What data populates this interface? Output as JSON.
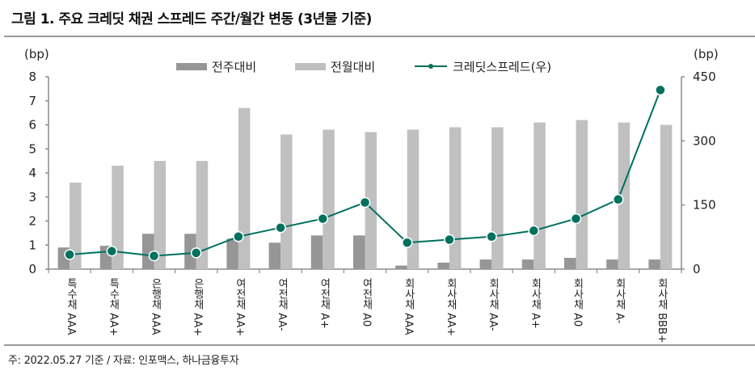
{
  "title": "그림 1. 주요 크레딧 채권 스프레드 주간/월간 변동 (3년물 기준)",
  "footnote": "주: 2022.05.27 기준 / 자료: 인포맥스, 하나금융투자",
  "chart_data": {
    "type": "bar+line",
    "categories": [
      "특수채 AAA",
      "특수채 AA+",
      "은행채 AAA",
      "은행채 AA+",
      "여전채 AA+",
      "여전채 AA-",
      "여전채 A+",
      "여전채 A0",
      "회사채 AAA",
      "회사채 AA+",
      "회사채 AA-",
      "회사채 A+",
      "회사채 A0",
      "회사채 A-",
      "회사채 BBB+"
    ],
    "y_left": {
      "unit": "(bp)",
      "ylim": [
        0,
        8
      ],
      "ticks": [
        "0",
        "1",
        "2",
        "3",
        "4",
        "5",
        "6",
        "7",
        "8"
      ]
    },
    "y_right": {
      "unit": "(bp)",
      "ylim": [
        0,
        450
      ],
      "ticks": [
        "0",
        "150",
        "300",
        "450"
      ]
    },
    "legend_position": "top",
    "grid": false,
    "series": [
      {
        "name": "전주대비",
        "type": "bar",
        "axis": "left",
        "color": "#969696",
        "values": [
          0.9,
          0.97,
          1.47,
          1.47,
          1.27,
          1.1,
          1.4,
          1.4,
          0.15,
          0.27,
          0.4,
          0.4,
          0.47,
          0.4,
          0.4
        ]
      },
      {
        "name": "전월대비",
        "type": "bar",
        "axis": "left",
        "color": "#c0c0c0",
        "values": [
          3.6,
          4.3,
          4.5,
          4.5,
          6.7,
          5.6,
          5.8,
          5.7,
          5.8,
          5.9,
          5.9,
          6.1,
          6.2,
          6.1,
          6.0
        ]
      },
      {
        "name": "크레딧스프레드(우)",
        "type": "line",
        "axis": "right",
        "color": "#00705f",
        "values": [
          34,
          42,
          31,
          38,
          76,
          97,
          118,
          156,
          62,
          69,
          76,
          90,
          118,
          163,
          419
        ]
      }
    ]
  }
}
